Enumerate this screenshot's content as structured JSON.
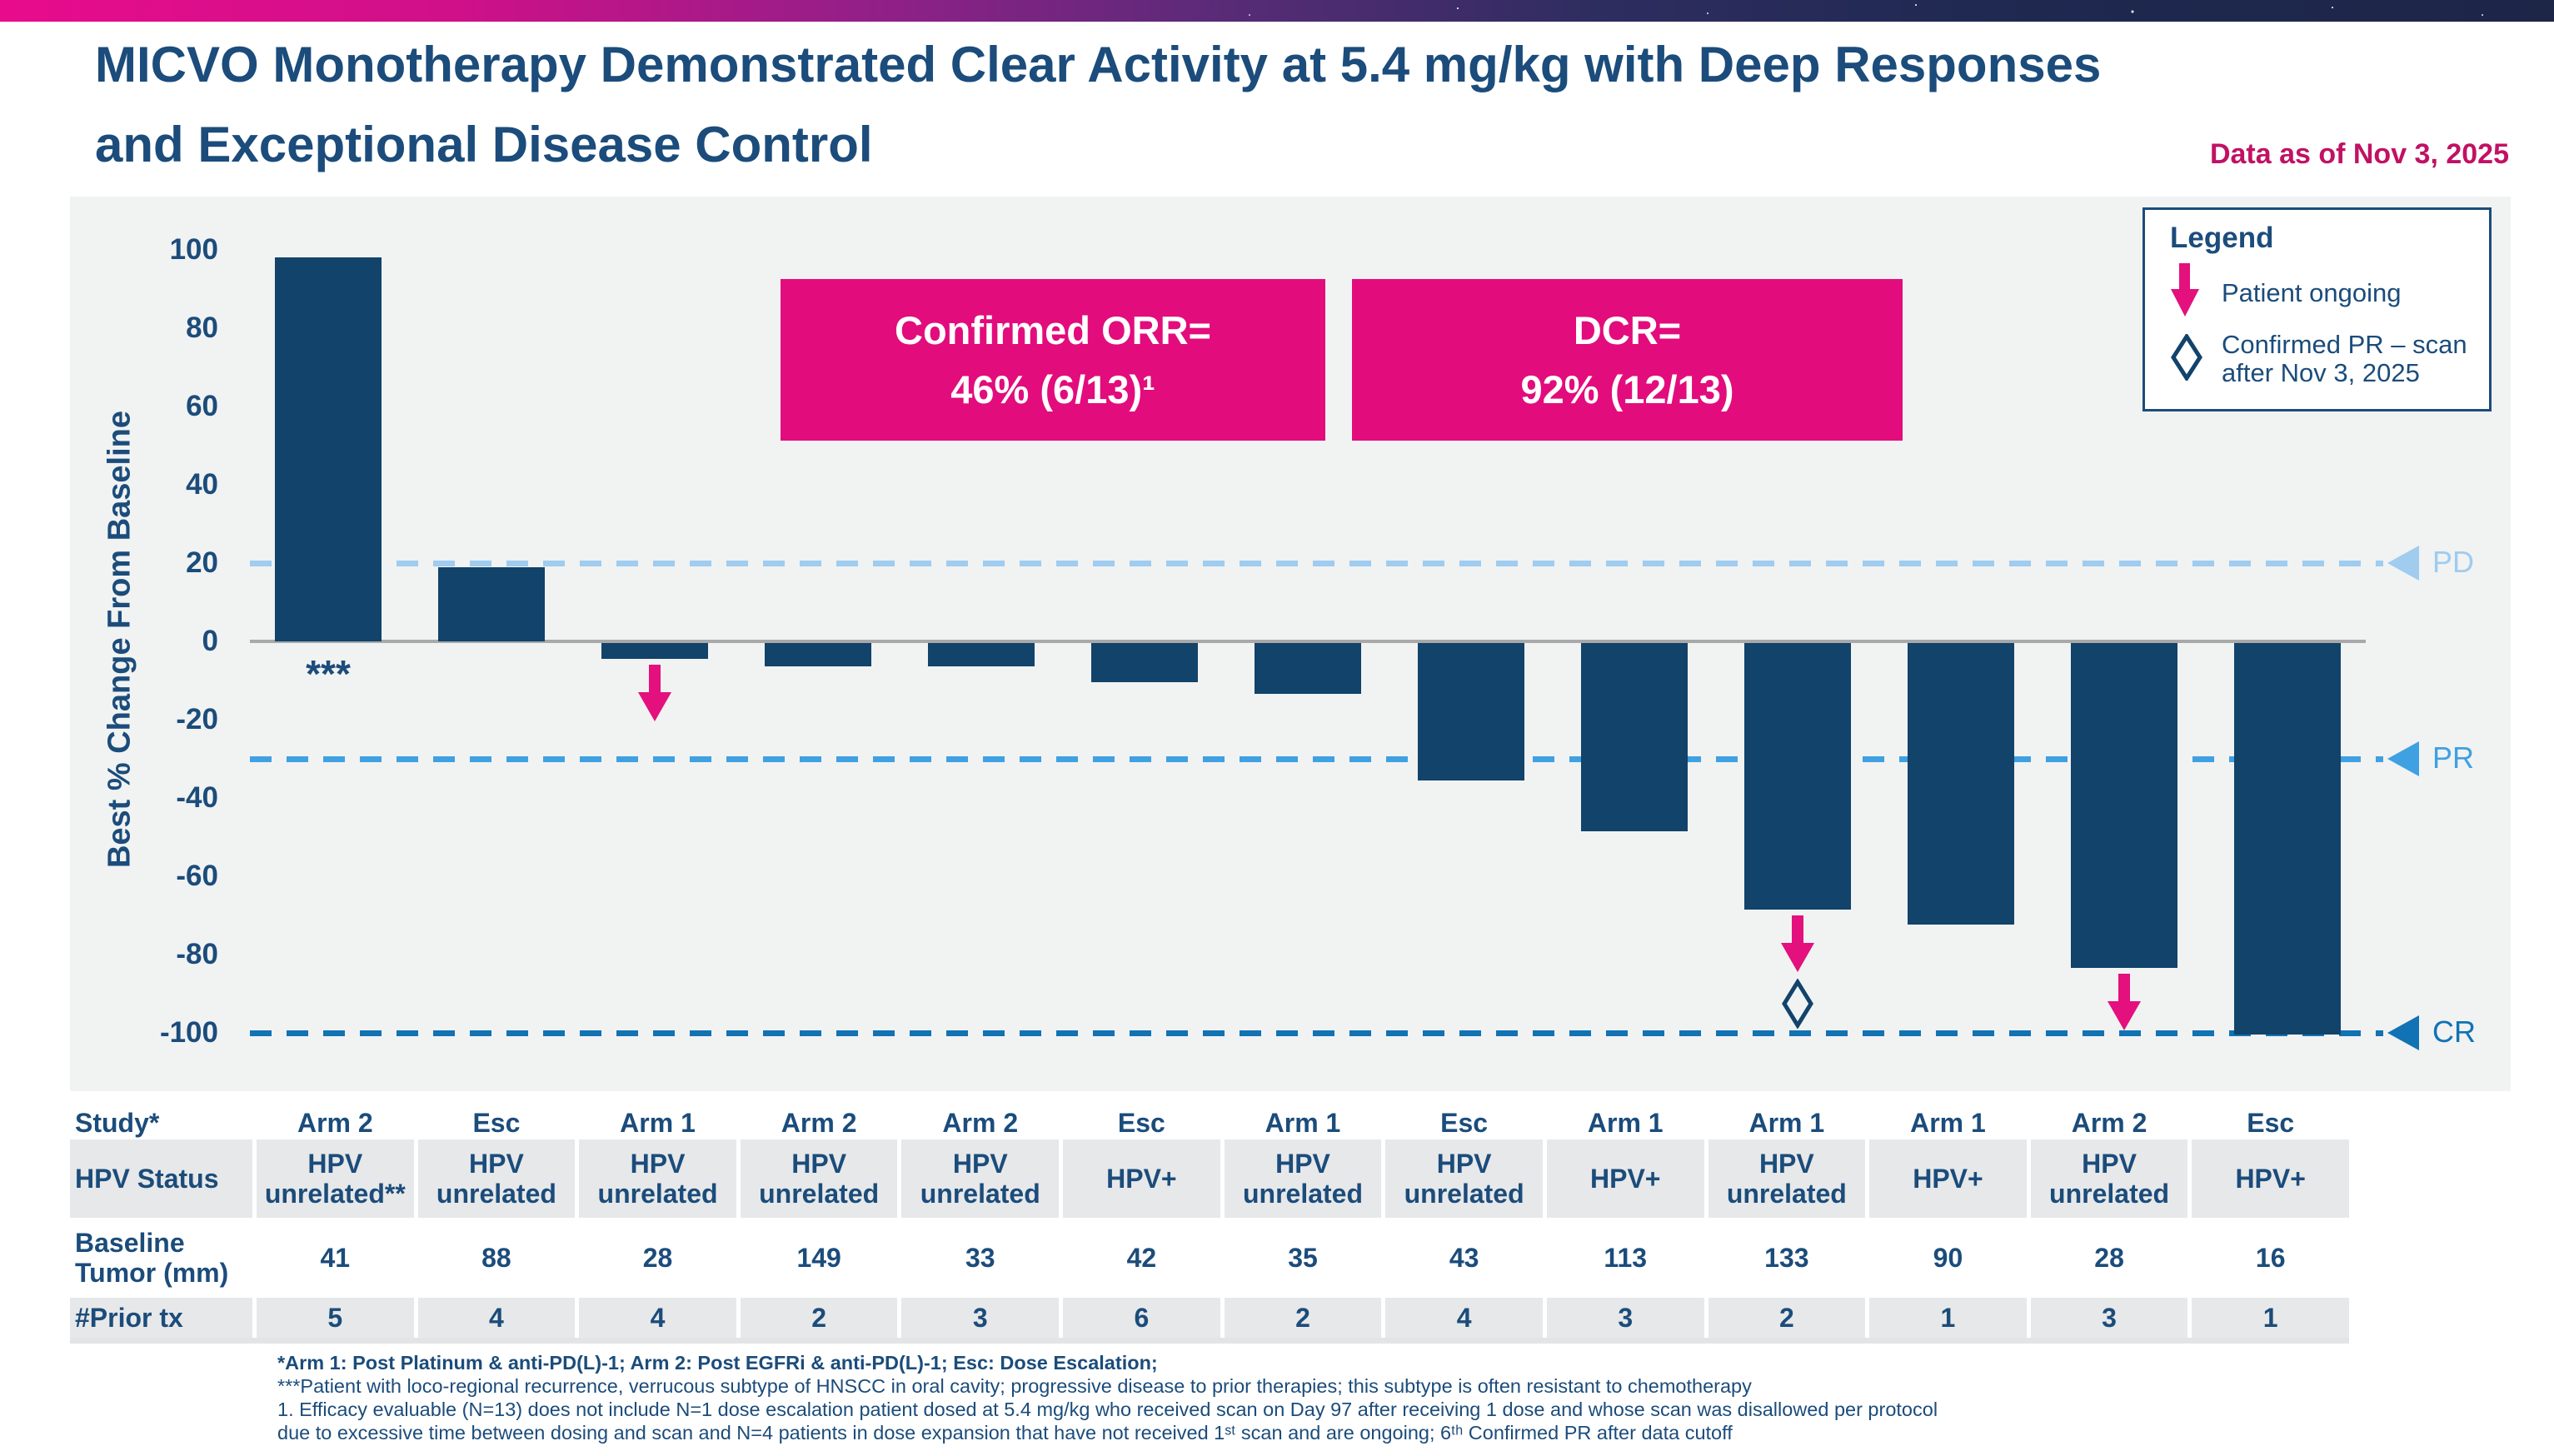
{
  "slide": {
    "title_line1": "MICVO Monotherapy Demonstrated Clear Activity at 5.4 mg/kg with Deep Responses",
    "title_line2": "and Exceptional Disease Control",
    "data_as_of": "Data as of Nov 3, 2025"
  },
  "stat_boxes": [
    {
      "line1": "Confirmed ORR=",
      "line2": "46% (6/13)¹"
    },
    {
      "line1": "DCR=",
      "line2": "92% (12/13)"
    }
  ],
  "legend": {
    "title": "Legend",
    "items": [
      {
        "icon": "pink-down-arrow-icon",
        "label": "Patient ongoing"
      },
      {
        "icon": "diamond-outline-icon",
        "label": "Confirmed PR – scan after Nov 3, 2025"
      }
    ]
  },
  "chart_data": {
    "type": "bar",
    "title": "",
    "xlabel": "",
    "ylabel": "Best % Change From Baseline",
    "ylim": [
      -100,
      100
    ],
    "yticks": [
      100,
      80,
      60,
      40,
      20,
      0,
      -20,
      -40,
      -60,
      -80,
      -100
    ],
    "grid": false,
    "bar_color": "#11436b",
    "zero_line_color": "#a9a9a9",
    "marker_color": "#e3107d",
    "reference_lines": [
      {
        "value": 20,
        "label": "PD",
        "color": "#9fccef"
      },
      {
        "value": -30,
        "label": "PR",
        "color": "#3fa0e2"
      },
      {
        "value": -100,
        "label": "CR",
        "color": "#1172b4"
      }
    ],
    "bars": [
      {
        "value": 98,
        "annotation": "***",
        "ongoing": false,
        "pr_after_cutoff": false,
        "study": "Arm 2",
        "hpv_status": "HPV unrelated**",
        "baseline_tumor_mm": 41,
        "prior_tx": 5
      },
      {
        "value": 19,
        "annotation": "",
        "ongoing": false,
        "pr_after_cutoff": false,
        "study": "Esc",
        "hpv_status": "HPV unrelated",
        "baseline_tumor_mm": 88,
        "prior_tx": 4
      },
      {
        "value": -4,
        "annotation": "",
        "ongoing": true,
        "pr_after_cutoff": false,
        "study": "Arm 1",
        "hpv_status": "HPV unrelated",
        "baseline_tumor_mm": 28,
        "prior_tx": 4
      },
      {
        "value": -6,
        "annotation": "",
        "ongoing": false,
        "pr_after_cutoff": false,
        "study": "Arm 2",
        "hpv_status": "HPV unrelated",
        "baseline_tumor_mm": 149,
        "prior_tx": 2
      },
      {
        "value": -6,
        "annotation": "",
        "ongoing": false,
        "pr_after_cutoff": false,
        "study": "Arm 2",
        "hpv_status": "HPV unrelated",
        "baseline_tumor_mm": 33,
        "prior_tx": 3
      },
      {
        "value": -10,
        "annotation": "",
        "ongoing": false,
        "pr_after_cutoff": false,
        "study": "Esc",
        "hpv_status": "HPV+",
        "baseline_tumor_mm": 42,
        "prior_tx": 6
      },
      {
        "value": -13,
        "annotation": "",
        "ongoing": false,
        "pr_after_cutoff": false,
        "study": "Arm 1",
        "hpv_status": "HPV unrelated",
        "baseline_tumor_mm": 35,
        "prior_tx": 2
      },
      {
        "value": -35,
        "annotation": "",
        "ongoing": false,
        "pr_after_cutoff": false,
        "study": "Esc",
        "hpv_status": "HPV unrelated",
        "baseline_tumor_mm": 43,
        "prior_tx": 4
      },
      {
        "value": -48,
        "annotation": "",
        "ongoing": false,
        "pr_after_cutoff": false,
        "study": "Arm 1",
        "hpv_status": "HPV+",
        "baseline_tumor_mm": 113,
        "prior_tx": 3
      },
      {
        "value": -68,
        "annotation": "",
        "ongoing": true,
        "pr_after_cutoff": true,
        "study": "Arm 1",
        "hpv_status": "HPV unrelated",
        "baseline_tumor_mm": 133,
        "prior_tx": 2
      },
      {
        "value": -72,
        "annotation": "",
        "ongoing": false,
        "pr_after_cutoff": false,
        "study": "Arm 1",
        "hpv_status": "HPV+",
        "baseline_tumor_mm": 90,
        "prior_tx": 1
      },
      {
        "value": -83,
        "annotation": "",
        "ongoing": true,
        "pr_after_cutoff": false,
        "study": "Arm 2",
        "hpv_status": "HPV unrelated",
        "baseline_tumor_mm": 28,
        "prior_tx": 3
      },
      {
        "value": -100,
        "annotation": "",
        "ongoing": false,
        "pr_after_cutoff": false,
        "study": "Esc",
        "hpv_status": "HPV+",
        "baseline_tumor_mm": 16,
        "prior_tx": 1
      }
    ]
  },
  "table": {
    "row_labels": [
      "Study*",
      "HPV Status",
      "Baseline Tumor (mm)",
      "#Prior tx"
    ]
  },
  "footnotes": [
    "*Arm 1: Post Platinum & anti-PD(L)-1; Arm 2: Post EGFRi & anti-PD(L)-1; Esc: Dose Escalation;",
    "***Patient with loco-regional recurrence, verrucous subtype of HNSCC in oral cavity; progressive disease to prior therapies; this subtype is often resistant to chemotherapy",
    "1. Efficacy evaluable (N=13) does not include N=1 dose escalation patient dosed at 5.4 mg/kg who received scan on Day 97 after receiving 1 dose and whose scan was disallowed per protocol",
    "due to excessive time between dosing and scan and N=4 patients in dose expansion that have not received 1ˢᵗ scan and are ongoing; 6ᵗʰ Confirmed PR after data cutoff"
  ]
}
